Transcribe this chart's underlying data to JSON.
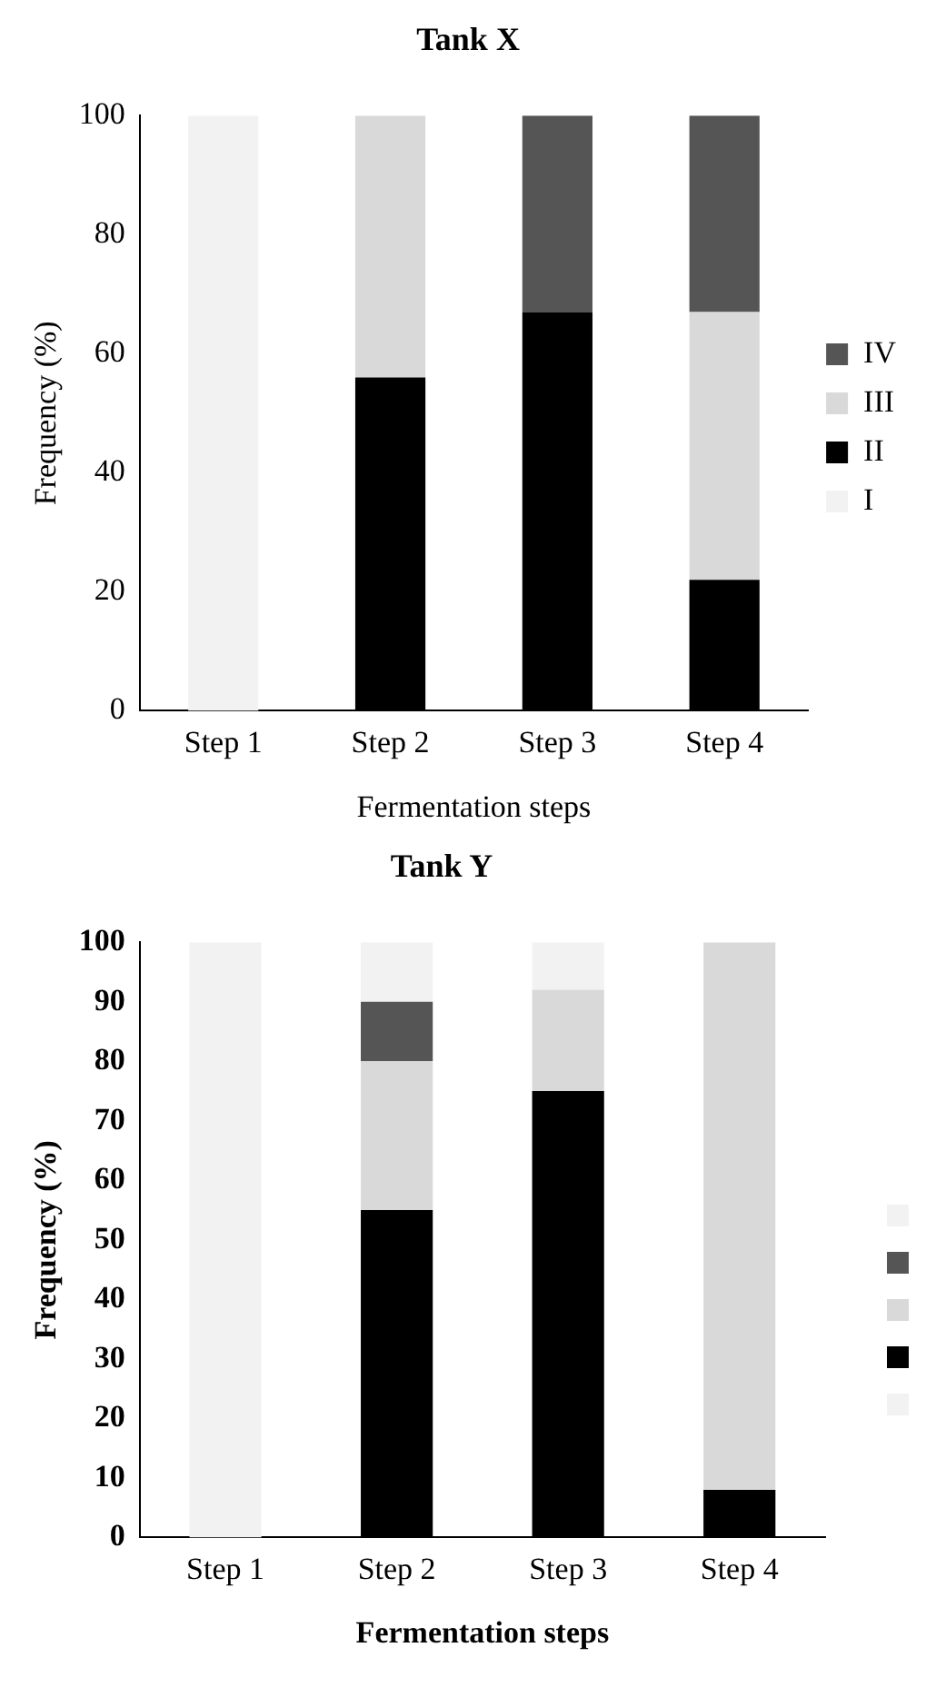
{
  "chart_data": [
    {
      "type": "bar",
      "title": "Tank X",
      "xlabel": "Fermentation steps",
      "ylabel": "Frequency (%)",
      "categories": [
        "Step 1",
        "Step 2",
        "Step 3",
        "Step 4"
      ],
      "stacked": true,
      "ylim": [
        0,
        100
      ],
      "yticks": [
        0,
        20,
        40,
        60,
        80,
        100
      ],
      "grid": false,
      "legend": "right",
      "series": [
        {
          "name": "I",
          "color": "#f2f2f2",
          "values": [
            100,
            0,
            0,
            0
          ]
        },
        {
          "name": "II",
          "color": "#000000",
          "values": [
            0,
            56,
            67,
            22
          ]
        },
        {
          "name": "III",
          "color": "#d9d9d9",
          "values": [
            0,
            44,
            0,
            45
          ]
        },
        {
          "name": "IV",
          "color": "#555555",
          "values": [
            0,
            0,
            33,
            33
          ]
        }
      ]
    },
    {
      "type": "bar",
      "title": "Tank Y",
      "xlabel": "Fermentation steps",
      "ylabel": "Frequency (%)",
      "categories": [
        "Step 1",
        "Step 2",
        "Step 3",
        "Step 4"
      ],
      "stacked": true,
      "ylim": [
        0,
        100
      ],
      "yticks": [
        0,
        10,
        20,
        30,
        40,
        50,
        60,
        70,
        80,
        90,
        100
      ],
      "grid": false,
      "legend": "right",
      "series": [
        {
          "color": "#f2f2f2",
          "values": [
            100,
            0,
            0,
            0
          ]
        },
        {
          "color": "#000000",
          "values": [
            0,
            55,
            75,
            8
          ]
        },
        {
          "color": "#d9d9d9",
          "values": [
            0,
            25,
            17,
            92
          ]
        },
        {
          "color": "#555555",
          "values": [
            0,
            10,
            0,
            0
          ]
        },
        {
          "color": "#f2f2f2",
          "values": [
            0,
            10,
            8,
            0
          ]
        }
      ]
    }
  ]
}
